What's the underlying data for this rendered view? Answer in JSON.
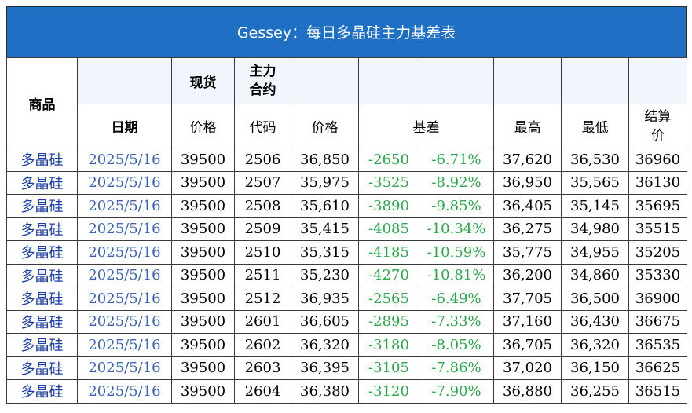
{
  "title": "Gessey：每日多晶硅主力基差表",
  "headers": {
    "product": "商品",
    "date": "日期",
    "spot": "现货",
    "spot_price": "价格",
    "main_contract": "主力\n合约",
    "code": "代码",
    "price": "价格",
    "basis": "基差",
    "high": "最高",
    "low": "最低",
    "settle": "结算\n价"
  },
  "rows": [
    {
      "product": "多晶硅",
      "date": "2025/5/16",
      "spot": "39500",
      "code": "2506",
      "price": "36,850",
      "basis": "-2650",
      "basis_pct": "-6.71%",
      "high": "37,620",
      "low": "36,530",
      "settle": "36960"
    },
    {
      "product": "多晶硅",
      "date": "2025/5/16",
      "spot": "39500",
      "code": "2507",
      "price": "35,975",
      "basis": "-3525",
      "basis_pct": "-8.92%",
      "high": "36,950",
      "low": "35,565",
      "settle": "36130"
    },
    {
      "product": "多晶硅",
      "date": "2025/5/16",
      "spot": "39500",
      "code": "2508",
      "price": "35,610",
      "basis": "-3890",
      "basis_pct": "-9.85%",
      "high": "36,405",
      "low": "35,145",
      "settle": "35695"
    },
    {
      "product": "多晶硅",
      "date": "2025/5/16",
      "spot": "39500",
      "code": "2509",
      "price": "35,415",
      "basis": "-4085",
      "basis_pct": "-10.34%",
      "high": "36,275",
      "low": "34,980",
      "settle": "35515"
    },
    {
      "product": "多晶硅",
      "date": "2025/5/16",
      "spot": "39500",
      "code": "2510",
      "price": "35,315",
      "basis": "-4185",
      "basis_pct": "-10.59%",
      "high": "35,775",
      "low": "34,955",
      "settle": "35205"
    },
    {
      "product": "多晶硅",
      "date": "2025/5/16",
      "spot": "39500",
      "code": "2511",
      "price": "35,230",
      "basis": "-4270",
      "basis_pct": "-10.81%",
      "high": "36,200",
      "low": "34,860",
      "settle": "35330"
    },
    {
      "product": "多晶硅",
      "date": "2025/5/16",
      "spot": "39500",
      "code": "2512",
      "price": "36,935",
      "basis": "-2565",
      "basis_pct": "-6.49%",
      "high": "37,705",
      "low": "36,500",
      "settle": "36900"
    },
    {
      "product": "多晶硅",
      "date": "2025/5/16",
      "spot": "39500",
      "code": "2601",
      "price": "36,605",
      "basis": "-2895",
      "basis_pct": "-7.33%",
      "high": "37,160",
      "low": "36,430",
      "settle": "36675"
    },
    {
      "product": "多晶硅",
      "date": "2025/5/16",
      "spot": "39500",
      "code": "2602",
      "price": "36,320",
      "basis": "-3180",
      "basis_pct": "-8.05%",
      "high": "36,705",
      "low": "36,320",
      "settle": "36535"
    },
    {
      "product": "多晶硅",
      "date": "2025/5/16",
      "spot": "39500",
      "code": "2603",
      "price": "36,395",
      "basis": "-3105",
      "basis_pct": "-7.86%",
      "high": "37,020",
      "low": "36,150",
      "settle": "36625"
    },
    {
      "product": "多晶硅",
      "date": "2025/5/16",
      "spot": "39500",
      "code": "2604",
      "price": "36,380",
      "basis": "-3120",
      "basis_pct": "-7.90%",
      "high": "36,880",
      "low": "36,255",
      "settle": "36515"
    }
  ],
  "colors": {
    "title_bg": "#1f6fc5",
    "product_text": "#1b3ea8",
    "date_text": "#3a63b5",
    "basis_text": "#2aa84a"
  }
}
